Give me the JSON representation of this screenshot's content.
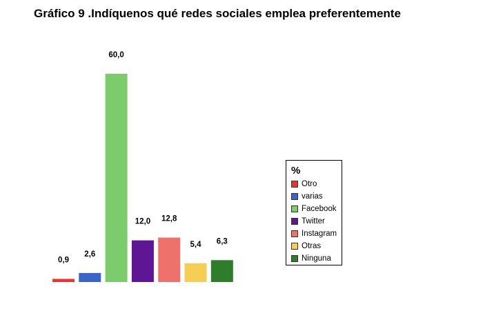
{
  "title": "Gráfico 9 .Indíquenos qué redes sociales emplea preferentemente",
  "chart_data": {
    "type": "bar",
    "categories": [
      "Otro",
      "varias",
      "Facebook",
      "Twitter",
      "Instagram",
      "Otras",
      "Ninguna"
    ],
    "values": [
      0.9,
      2.6,
      60.0,
      12.0,
      12.8,
      5.4,
      6.3
    ],
    "value_labels": [
      "0,9",
      "2,6",
      "60,0",
      "12,0",
      "12,8",
      "5,4",
      "6,3"
    ],
    "colors": [
      "#e0392f",
      "#3a64c8",
      "#7ccb6c",
      "#5f1694",
      "#ef716c",
      "#f7ce55",
      "#2f7d2a"
    ],
    "ylim": [
      0,
      60
    ],
    "grid": false,
    "legend": {
      "title": "%",
      "placement": "right"
    }
  }
}
